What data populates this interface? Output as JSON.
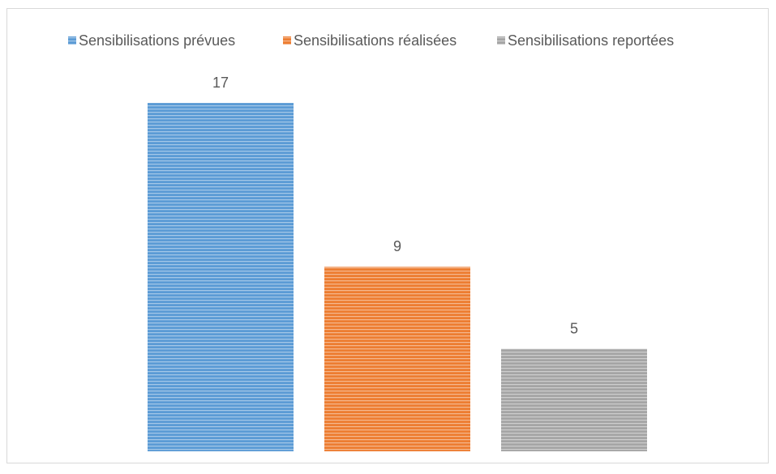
{
  "chart_data": {
    "type": "bar",
    "categories": [
      null
    ],
    "series": [
      {
        "name": "Sensibilisations prévues",
        "color": "#5b9bd5",
        "values": [
          17
        ]
      },
      {
        "name": "Sensibilisations réalisées",
        "color": "#ed7d31",
        "values": [
          9
        ]
      },
      {
        "name": "Sensibilisations reportées",
        "color": "#a5a5a5",
        "values": [
          5
        ]
      }
    ],
    "legend": "top"
  }
}
